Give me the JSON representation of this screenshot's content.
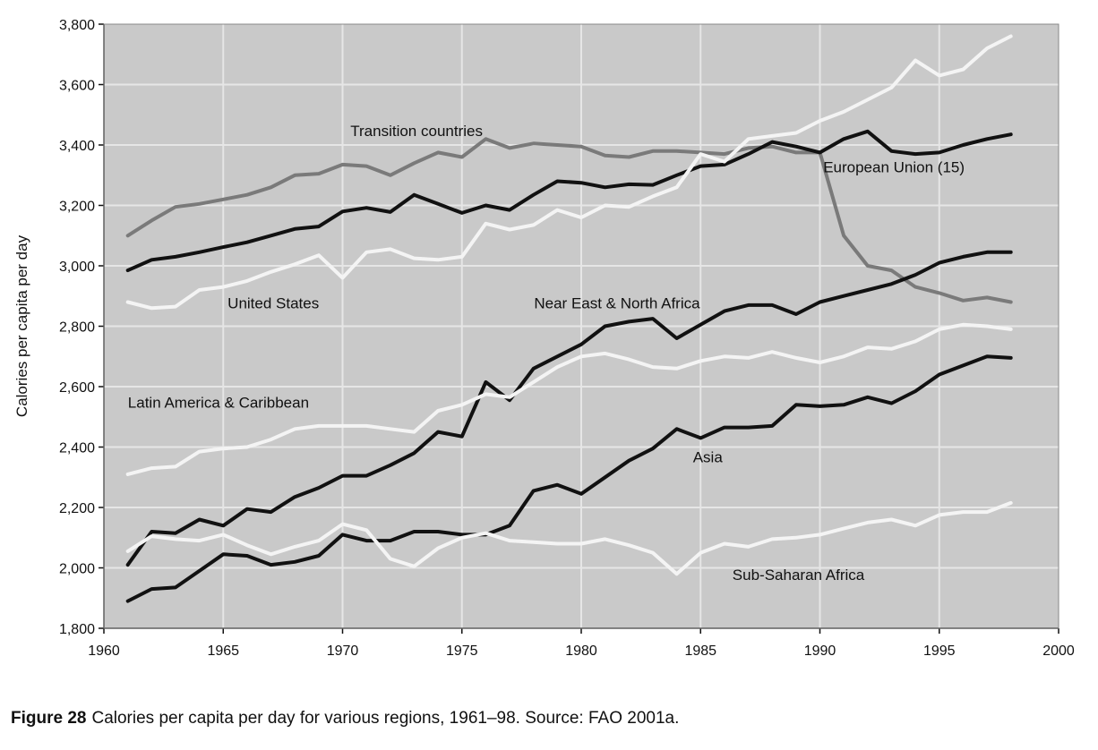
{
  "chart_data": {
    "type": "line",
    "xlabel": "",
    "ylabel": "Calories per capita per day",
    "xlim": [
      1960,
      2000
    ],
    "ylim": [
      1800,
      3800
    ],
    "xticks": [
      "1960",
      "1965",
      "1970",
      "1975",
      "1980",
      "1985",
      "1990",
      "1995",
      "2000"
    ],
    "yticks": [
      "1,800",
      "2,000",
      "2,200",
      "2,400",
      "2,600",
      "2,800",
      "3,000",
      "3,200",
      "3,400",
      "3,600",
      "3,800"
    ],
    "grid": true,
    "x": [
      1961,
      1962,
      1963,
      1964,
      1965,
      1966,
      1967,
      1968,
      1969,
      1970,
      1971,
      1972,
      1973,
      1974,
      1975,
      1976,
      1977,
      1978,
      1979,
      1980,
      1981,
      1982,
      1983,
      1984,
      1985,
      1986,
      1987,
      1988,
      1989,
      1990,
      1991,
      1992,
      1993,
      1994,
      1995,
      1996,
      1997,
      1998
    ],
    "series": [
      {
        "name": "Transition countries",
        "color": "#7a7a7a",
        "values": [
          3100,
          3150,
          3195,
          3205,
          3220,
          3235,
          3260,
          3300,
          3305,
          3335,
          3330,
          3300,
          3340,
          3375,
          3360,
          3420,
          3390,
          3405,
          3400,
          3395,
          3365,
          3360,
          3380,
          3380,
          3375,
          3370,
          3390,
          3395,
          3375,
          3375,
          3100,
          3000,
          2985,
          2930,
          2910,
          2885,
          2895,
          2880
        ]
      },
      {
        "name": "European Union (15)",
        "color": "#111111",
        "values": [
          2985,
          3020,
          3030,
          3045,
          3062,
          3078,
          3100,
          3122,
          3130,
          3180,
          3192,
          3178,
          3235,
          3205,
          3175,
          3200,
          3185,
          3235,
          3280,
          3275,
          3260,
          3270,
          3268,
          3300,
          3330,
          3335,
          3370,
          3410,
          3395,
          3375,
          3420,
          3445,
          3380,
          3370,
          3375,
          3400,
          3420,
          3435
        ]
      },
      {
        "name": "United States",
        "color": "#f4f4f4",
        "values": [
          2880,
          2860,
          2865,
          2920,
          2930,
          2950,
          2980,
          3005,
          3035,
          2960,
          3045,
          3055,
          3025,
          3020,
          3030,
          3140,
          3120,
          3135,
          3185,
          3160,
          3200,
          3195,
          3230,
          3260,
          3370,
          3345,
          3420,
          3430,
          3440,
          3480,
          3510,
          3550,
          3590,
          3680,
          3630,
          3650,
          3720,
          3760
        ]
      },
      {
        "name": "Near East & North Africa",
        "color": "#111111",
        "values": [
          2010,
          2120,
          2115,
          2160,
          2140,
          2195,
          2185,
          2235,
          2265,
          2305,
          2305,
          2340,
          2380,
          2450,
          2435,
          2615,
          2555,
          2660,
          2700,
          2740,
          2800,
          2815,
          2825,
          2760,
          2805,
          2850,
          2870,
          2870,
          2840,
          2880,
          2900,
          2920,
          2940,
          2970,
          3010,
          3030,
          3045,
          3045
        ]
      },
      {
        "name": "Latin America & Caribbean",
        "color": "#f4f4f4",
        "values": [
          2310,
          2330,
          2335,
          2385,
          2395,
          2400,
          2425,
          2460,
          2470,
          2470,
          2470,
          2460,
          2450,
          2520,
          2540,
          2575,
          2565,
          2615,
          2665,
          2700,
          2710,
          2690,
          2665,
          2660,
          2685,
          2700,
          2695,
          2715,
          2695,
          2680,
          2700,
          2730,
          2725,
          2750,
          2790,
          2805,
          2800,
          2790
        ]
      },
      {
        "name": "Asia",
        "color": "#111111",
        "values": [
          1890,
          1930,
          1935,
          1990,
          2045,
          2040,
          2010,
          2020,
          2040,
          2110,
          2090,
          2090,
          2120,
          2120,
          2110,
          2110,
          2140,
          2255,
          2275,
          2245,
          2300,
          2355,
          2395,
          2460,
          2430,
          2465,
          2465,
          2470,
          2540,
          2535,
          2540,
          2565,
          2545,
          2585,
          2640,
          2670,
          2700,
          2695
        ]
      },
      {
        "name": "Sub-Saharan Africa",
        "color": "#f4f4f4",
        "values": [
          2055,
          2105,
          2095,
          2090,
          2110,
          2075,
          2045,
          2070,
          2090,
          2145,
          2125,
          2030,
          2005,
          2065,
          2100,
          2115,
          2090,
          2085,
          2080,
          2080,
          2095,
          2075,
          2050,
          1980,
          2050,
          2080,
          2070,
          2095,
          2100,
          2110,
          2130,
          2150,
          2160,
          2140,
          2175,
          2185,
          2185,
          2215
        ]
      }
    ],
    "annotations": [
      {
        "text": "Transition countries",
        "x": 1973.1,
        "y": 3430
      },
      {
        "text": "European Union (15)",
        "x": 1993.1,
        "y": 3310
      },
      {
        "text": "United States",
        "x": 1967.1,
        "y": 2860
      },
      {
        "text": "Near East & North Africa",
        "x": 1981.5,
        "y": 2860
      },
      {
        "text": "Latin America & Caribbean",
        "x": 1964.8,
        "y": 2530
      },
      {
        "text": "Asia",
        "x": 1985.3,
        "y": 2350
      },
      {
        "text": "Sub-Saharan Africa",
        "x": 1989.1,
        "y": 1960
      }
    ]
  },
  "caption": {
    "label": "Figure 28",
    "text": "Calories per capita per day for various regions, 1961–98. Source: FAO 2001a."
  }
}
